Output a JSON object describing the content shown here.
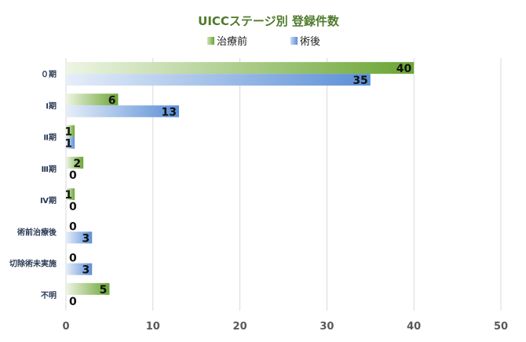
{
  "chart_data": {
    "type": "bar",
    "orientation": "horizontal",
    "title": "UICCステージ別 登録件数",
    "categories": [
      "０期",
      "Ⅰ期",
      "Ⅱ期",
      "Ⅲ期",
      "Ⅳ期",
      "術前治療後",
      "切除術未実施",
      "不明"
    ],
    "series": [
      {
        "name": "治療前",
        "values": [
          40,
          6,
          1,
          2,
          1,
          0,
          0,
          5
        ],
        "color": "#6aa534"
      },
      {
        "name": "術後",
        "values": [
          35,
          13,
          1,
          0,
          0,
          3,
          3,
          0
        ],
        "color": "#5b8fd6"
      }
    ],
    "xlim": [
      0,
      50
    ],
    "xticks": [
      0,
      10,
      20,
      30,
      40,
      50
    ],
    "legend_position": "top",
    "grid": true,
    "data_labels": true
  }
}
